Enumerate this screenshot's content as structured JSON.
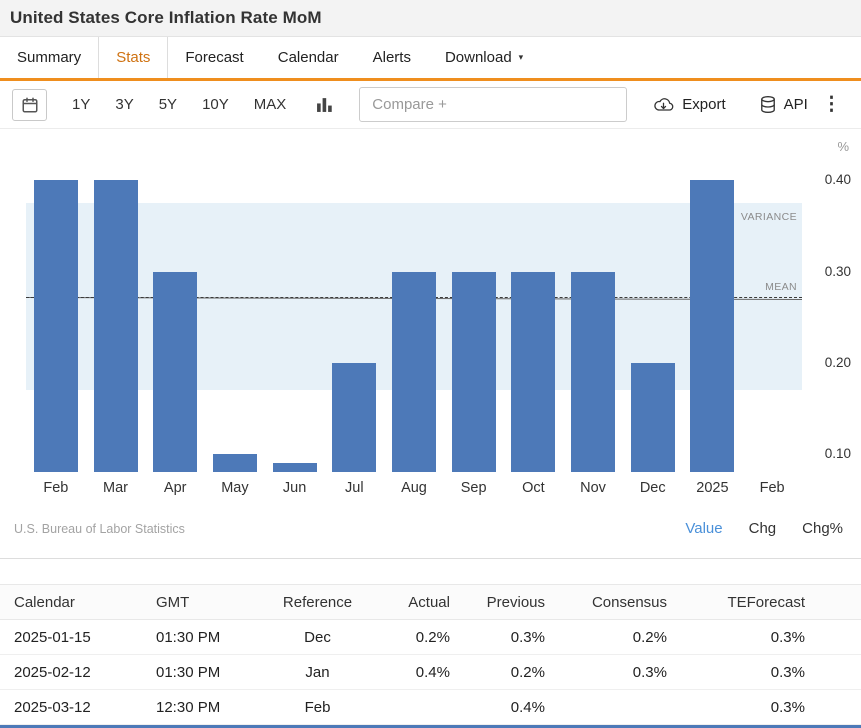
{
  "page": {
    "title": "United States Core Inflation Rate MoM"
  },
  "tabs": [
    {
      "label": "Summary",
      "active": false,
      "has_caret": false
    },
    {
      "label": "Stats",
      "active": true,
      "has_caret": false
    },
    {
      "label": "Forecast",
      "active": false,
      "has_caret": false
    },
    {
      "label": "Calendar",
      "active": false,
      "has_caret": false
    },
    {
      "label": "Alerts",
      "active": false,
      "has_caret": false
    },
    {
      "label": "Download",
      "active": false,
      "has_caret": true
    }
  ],
  "toolbar": {
    "ranges": [
      "1Y",
      "3Y",
      "5Y",
      "10Y",
      "MAX"
    ],
    "compare_placeholder": "Compare +",
    "export_label": "Export",
    "api_label": "API",
    "icons": [
      "calendar-icon",
      "bar-chart-icon",
      "cloud-download-icon",
      "database-icon",
      "kebab-menu-icon"
    ]
  },
  "chart_data": {
    "type": "bar",
    "title": "United States Core Inflation Rate MoM",
    "categories": [
      "Feb",
      "Mar",
      "Apr",
      "May",
      "Jun",
      "Jul",
      "Aug",
      "Sep",
      "Oct",
      "Nov",
      "Dec",
      "2025",
      "Feb"
    ],
    "values": [
      0.4,
      0.4,
      0.3,
      0.1,
      0.09,
      0.2,
      0.3,
      0.3,
      0.3,
      0.3,
      0.2,
      0.4,
      null
    ],
    "unit": "%",
    "ylabel": "",
    "xlabel": "",
    "y_ticks": [
      "0.40",
      "0.30",
      "0.20",
      "0.10"
    ],
    "y_tick_values": [
      0.4,
      0.3,
      0.2,
      0.1
    ],
    "ylim": [
      0.08,
      0.44
    ],
    "mean": 0.272,
    "variance_band": [
      0.17,
      0.375
    ],
    "labels": {
      "variance": "VARIANCE",
      "mean": "MEAN"
    },
    "grid": false,
    "legend": "none",
    "source": "U.S. Bureau of Labor Statistics",
    "series_links": [
      {
        "label": "Value",
        "active": true
      },
      {
        "label": "Chg",
        "active": false
      },
      {
        "label": "Chg%",
        "active": false
      }
    ]
  },
  "table": {
    "columns": [
      "Calendar",
      "GMT",
      "Reference",
      "Actual",
      "Previous",
      "Consensus",
      "TEForecast"
    ],
    "rows": [
      [
        "2025-01-15",
        "01:30 PM",
        "Dec",
        "0.2%",
        "0.3%",
        "0.2%",
        "0.3%"
      ],
      [
        "2025-02-12",
        "01:30 PM",
        "Jan",
        "0.4%",
        "0.2%",
        "0.3%",
        "0.3%"
      ],
      [
        "2025-03-12",
        "12:30 PM",
        "Feb",
        "",
        "0.4%",
        "",
        "0.3%"
      ]
    ]
  },
  "colors": {
    "bar_blue": "#4d79b8",
    "accent_orange": "#ef8e1e",
    "active_tab_orange": "#cf7212",
    "link_blue": "#4a90d9",
    "variance_band_blue": "#e7f1f8",
    "header_gray": "#f3f3f3",
    "next_row_blue": "#4d79b8"
  }
}
